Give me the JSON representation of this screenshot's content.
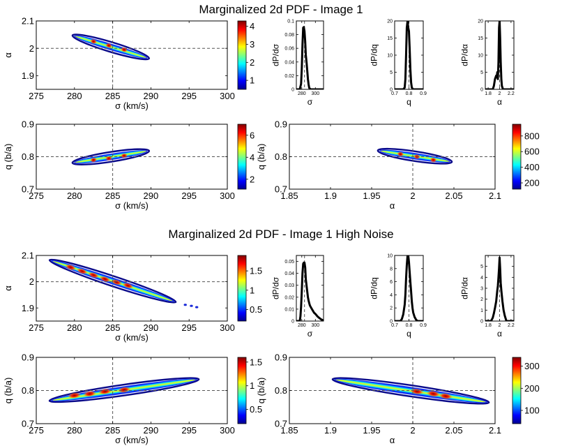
{
  "chart_data": [
    {
      "type": "heatmap",
      "title": "Marginalized 2d PDF - Image 1",
      "xlabel": "σ (km/s)",
      "ylabel": "α",
      "xlim": [
        275,
        300
      ],
      "ylim": [
        1.85,
        2.1
      ],
      "xticks": [
        275,
        280,
        285,
        290,
        295,
        300
      ],
      "yticks": [
        1.9,
        2,
        2.1
      ],
      "ref_x": 285,
      "ref_y": 2,
      "blob": {
        "x1": 280,
        "y1": 2.045,
        "x2": 289.5,
        "y2": 1.965
      },
      "peaks": [
        {
          "x": 282.5,
          "y": 2.025
        },
        {
          "x": 284.5,
          "y": 2.01
        },
        {
          "x": 286.5,
          "y": 1.995
        }
      ],
      "colorbar": {
        "min": 0.5,
        "max": 4.3,
        "ticks": [
          1,
          2,
          3,
          4
        ]
      }
    },
    {
      "type": "heatmap",
      "xlabel": "σ (km/s)",
      "ylabel": "q (b/a)",
      "xlim": [
        275,
        300
      ],
      "ylim": [
        0.7,
        0.9
      ],
      "xticks": [
        275,
        280,
        285,
        290,
        295,
        300
      ],
      "yticks": [
        0.7,
        0.8,
        0.9
      ],
      "ref_x": 285,
      "ref_y": 0.8,
      "blob": {
        "x1": 280,
        "y1": 0.782,
        "x2": 289.5,
        "y2": 0.817
      },
      "peaks": [
        {
          "x": 282.5,
          "y": 0.79
        },
        {
          "x": 284.5,
          "y": 0.795
        },
        {
          "x": 286.5,
          "y": 0.803
        }
      ],
      "colorbar": {
        "min": 1.1,
        "max": 7,
        "ticks": [
          2,
          4,
          6
        ]
      }
    },
    {
      "type": "heatmap",
      "xlabel": "α",
      "ylabel": "q (b/a)",
      "xlim": [
        1.85,
        2.1
      ],
      "ylim": [
        0.7,
        0.9
      ],
      "xticks": [
        1.85,
        1.9,
        1.95,
        2,
        2.05,
        2.1
      ],
      "yticks": [
        0.7,
        0.8,
        0.9
      ],
      "ref_x": 2,
      "ref_y": 0.8,
      "blob": {
        "x1": 1.96,
        "y1": 0.818,
        "x2": 2.045,
        "y2": 0.785
      },
      "peaks": [
        {
          "x": 1.985,
          "y": 0.808
        },
        {
          "x": 2.005,
          "y": 0.8
        },
        {
          "x": 2.025,
          "y": 0.79
        }
      ],
      "colorbar": {
        "min": 120,
        "max": 950,
        "ticks": [
          200,
          400,
          600,
          800
        ]
      }
    },
    {
      "type": "line",
      "xlabel": "σ",
      "ylabel": "dP/dσ",
      "xlim": [
        272,
        312
      ],
      "ylim": [
        0,
        0.1
      ],
      "xticks": [
        280,
        300
      ],
      "yticks": [
        0,
        0.02,
        0.04,
        0.06,
        0.08,
        0.1
      ],
      "ref_x": 284,
      "x": [
        272,
        277,
        279,
        280,
        281,
        282,
        283,
        284,
        285,
        286,
        287,
        288,
        289,
        290,
        291,
        293,
        312
      ],
      "values": [
        0,
        0,
        0.008,
        0.03,
        0.065,
        0.09,
        0.091,
        0.085,
        0.07,
        0.05,
        0.04,
        0.028,
        0.015,
        0.007,
        0.002,
        0,
        0
      ]
    },
    {
      "type": "line",
      "xlabel": "q",
      "ylabel": "dP/dq",
      "xlim": [
        0.7,
        0.9
      ],
      "ylim": [
        0,
        20
      ],
      "xticks": [
        0.7,
        0.8,
        0.9
      ],
      "yticks": [
        0,
        5,
        10,
        15,
        20
      ],
      "ref_x": 0.8,
      "x": [
        0.7,
        0.76,
        0.77,
        0.775,
        0.78,
        0.785,
        0.79,
        0.795,
        0.8,
        0.805,
        0.81,
        0.815,
        0.82,
        0.83,
        0.9
      ],
      "values": [
        0,
        0,
        0.5,
        3,
        10,
        18,
        20,
        18,
        17,
        12,
        6,
        2,
        0.5,
        0,
        0
      ]
    },
    {
      "type": "line",
      "xlabel": "α",
      "ylabel": "dP/dα",
      "xlim": [
        1.75,
        2.25
      ],
      "ylim": [
        0,
        20
      ],
      "xticks": [
        1.8,
        2,
        2.2
      ],
      "yticks": [
        0,
        5,
        10,
        15,
        20
      ],
      "ref_x": 2,
      "x": [
        1.75,
        1.88,
        1.9,
        1.92,
        1.94,
        1.95,
        1.96,
        1.97,
        1.98,
        1.99,
        2,
        2.01,
        2.02,
        2.03,
        2.04,
        2.06,
        2.25
      ],
      "values": [
        0,
        0,
        1,
        3,
        4,
        3.5,
        5,
        3,
        8,
        18,
        20,
        15,
        8,
        3,
        1,
        0,
        0
      ]
    },
    {
      "type": "heatmap",
      "title": "Marginalized 2d PDF - Image 1 High Noise",
      "xlabel": "σ (km/s)",
      "ylabel": "α",
      "xlim": [
        275,
        300
      ],
      "ylim": [
        1.85,
        2.1
      ],
      "xticks": [
        275,
        280,
        285,
        290,
        295,
        300
      ],
      "yticks": [
        1.9,
        2,
        2.1
      ],
      "ref_x": 285,
      "ref_y": 2,
      "blob": {
        "x1": 277,
        "y1": 2.08,
        "x2": 293,
        "y2": 1.925
      },
      "tail": [
        {
          "x": 294.5,
          "y": 1.912
        },
        {
          "x": 295.3,
          "y": 1.908
        },
        {
          "x": 296,
          "y": 1.903
        }
      ],
      "peaks": [
        {
          "x": 279.5,
          "y": 2.055
        },
        {
          "x": 281,
          "y": 2.04
        },
        {
          "x": 282.5,
          "y": 2.025
        },
        {
          "x": 284,
          "y": 2.01
        },
        {
          "x": 285.5,
          "y": 1.998
        },
        {
          "x": 287,
          "y": 1.985
        }
      ],
      "colorbar": {
        "min": 0.2,
        "max": 1.9,
        "ticks": [
          0.5,
          1,
          1.5
        ]
      }
    },
    {
      "type": "heatmap",
      "xlabel": "σ (km/s)",
      "ylabel": "q (b/a)",
      "xlim": [
        275,
        300
      ],
      "ylim": [
        0.7,
        0.9
      ],
      "xticks": [
        275,
        280,
        285,
        290,
        295,
        300
      ],
      "yticks": [
        0.7,
        0.8,
        0.9
      ],
      "ref_x": 285,
      "ref_y": 0.8,
      "blob": {
        "x1": 277,
        "y1": 0.77,
        "x2": 296,
        "y2": 0.833
      },
      "peaks": [
        {
          "x": 280,
          "y": 0.785
        },
        {
          "x": 282,
          "y": 0.79
        },
        {
          "x": 284,
          "y": 0.797
        },
        {
          "x": 286.5,
          "y": 0.802
        }
      ],
      "colorbar": {
        "min": 0.2,
        "max": 1.6,
        "ticks": [
          0.5,
          1,
          1.5
        ]
      }
    },
    {
      "type": "heatmap",
      "xlabel": "α",
      "ylabel": "q (b/a)",
      "xlim": [
        1.85,
        2.1
      ],
      "ylim": [
        0.7,
        0.9
      ],
      "xticks": [
        1.85,
        1.9,
        1.95,
        2,
        2.05,
        2.1
      ],
      "yticks": [
        0.7,
        0.8,
        0.9
      ],
      "ref_x": 2,
      "ref_y": 0.8,
      "blob": {
        "x1": 1.905,
        "y1": 0.833,
        "x2": 2.09,
        "y2": 0.765
      },
      "peaks": [
        {
          "x": 2.005,
          "y": 0.797
        },
        {
          "x": 2.025,
          "y": 0.79
        },
        {
          "x": 2.04,
          "y": 0.783
        }
      ],
      "colorbar": {
        "min": 40,
        "max": 340,
        "ticks": [
          100,
          200,
          300
        ]
      }
    },
    {
      "type": "line",
      "xlabel": "σ",
      "ylabel": "dP/dσ",
      "xlim": [
        272,
        312
      ],
      "ylim": [
        0,
        0.055
      ],
      "xticks": [
        280,
        300
      ],
      "yticks": [
        0,
        0.01,
        0.02,
        0.03,
        0.04,
        0.05
      ],
      "ref_x": 284,
      "x": [
        272,
        277,
        278,
        279,
        280,
        281,
        282,
        283,
        284,
        285,
        286,
        287,
        288,
        289,
        290,
        291,
        292,
        294,
        296,
        298,
        300,
        303,
        306,
        309,
        312
      ],
      "values": [
        0,
        0,
        0.004,
        0.012,
        0.025,
        0.04,
        0.048,
        0.049,
        0.049,
        0.045,
        0.035,
        0.03,
        0.025,
        0.02,
        0.017,
        0.015,
        0.013,
        0.011,
        0.009,
        0.007,
        0.006,
        0.004,
        0.0025,
        0.0012,
        0.0005
      ]
    },
    {
      "type": "line",
      "xlabel": "q",
      "ylabel": "dP/dq",
      "xlim": [
        0.7,
        0.9
      ],
      "ylim": [
        0,
        10
      ],
      "xticks": [
        0.7,
        0.8,
        0.9
      ],
      "yticks": [
        0,
        2,
        4,
        6,
        8,
        10
      ],
      "ref_x": 0.8,
      "x": [
        0.7,
        0.74,
        0.75,
        0.76,
        0.77,
        0.775,
        0.78,
        0.785,
        0.79,
        0.795,
        0.8,
        0.805,
        0.81,
        0.815,
        0.82,
        0.825,
        0.83,
        0.84,
        0.85,
        0.86,
        0.9
      ],
      "values": [
        0,
        0,
        0.3,
        1,
        2.5,
        4,
        6.5,
        8.5,
        10,
        10,
        9,
        7.5,
        6,
        4.5,
        3,
        2,
        1.3,
        0.6,
        0.2,
        0,
        0
      ]
    },
    {
      "type": "line",
      "xlabel": "α",
      "ylabel": "dP/dα",
      "xlim": [
        1.75,
        2.25
      ],
      "ylim": [
        0,
        6
      ],
      "xticks": [
        1.8,
        2,
        2.2
      ],
      "yticks": [
        0,
        1,
        2,
        3,
        4,
        5
      ],
      "ref_x": 2,
      "x": [
        1.75,
        1.85,
        1.88,
        1.9,
        1.92,
        1.94,
        1.96,
        1.97,
        1.98,
        1.99,
        2,
        2.01,
        2.02,
        2.03,
        2.05,
        2.07,
        2.09,
        2.12,
        2.25
      ],
      "values": [
        0,
        0,
        0.3,
        0.7,
        1.2,
        1.8,
        2.8,
        3.2,
        4,
        4.8,
        5.8,
        4.8,
        3.5,
        2.8,
        1.8,
        1,
        0.5,
        0,
        0
      ]
    }
  ]
}
